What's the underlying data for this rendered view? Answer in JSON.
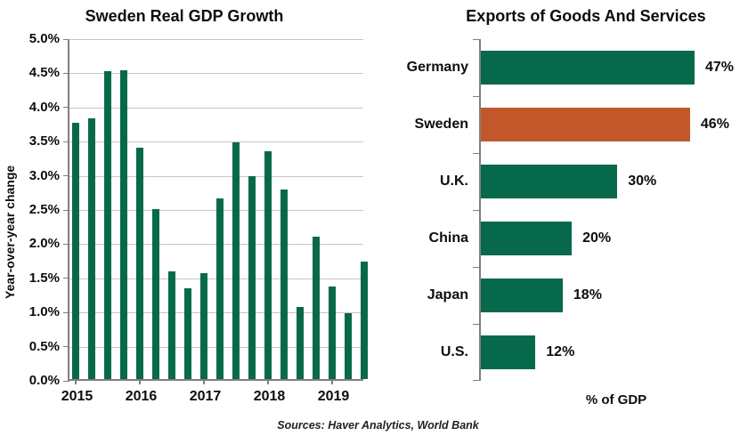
{
  "source": "Sources: Haver Analytics, World Bank",
  "colors": {
    "green": "#06694C",
    "orange": "#C2582A",
    "gridline": "#C6C6C6",
    "axis": "#7F7F7F",
    "text": "#0D0D0D"
  },
  "chart_data": [
    {
      "type": "bar",
      "title": "Sweden Real GDP Growth",
      "ylabel": "Year-over-year change",
      "ylim": [
        0,
        5
      ],
      "ytick_step": 0.5,
      "ytick_labels": [
        "5.0%",
        "4.5%",
        "4.0%",
        "3.5%",
        "3.0%",
        "2.5%",
        "2.0%",
        "1.5%",
        "1.0%",
        "0.5%",
        "0.0%"
      ],
      "x_year_labels": [
        "2015",
        "2016",
        "2017",
        "2018",
        "2019"
      ],
      "x": [
        "2015 Q1",
        "2015 Q2",
        "2015 Q3",
        "2015 Q4",
        "2016 Q1",
        "2016 Q2",
        "2016 Q3",
        "2016 Q4",
        "2017 Q1",
        "2017 Q2",
        "2017 Q3",
        "2017 Q4",
        "2018 Q1",
        "2018 Q2",
        "2018 Q3",
        "2018 Q4",
        "2019 Q1",
        "2019 Q2",
        "2019 Q3"
      ],
      "values": [
        3.75,
        3.81,
        4.51,
        4.52,
        3.38,
        2.49,
        1.58,
        1.33,
        1.55,
        2.64,
        3.46,
        2.97,
        3.33,
        2.77,
        1.05,
        2.09,
        1.36,
        0.96,
        1.72
      ],
      "grid": true,
      "legend": false,
      "bar_color": "#06694C"
    },
    {
      "type": "bar",
      "orientation": "horizontal",
      "title": "Exports of Goods And Services",
      "xlabel": "% of GDP",
      "categories": [
        "Germany",
        "Sweden",
        "U.K.",
        "China",
        "Japan",
        "U.S."
      ],
      "values": [
        47,
        46,
        30,
        20,
        18,
        12
      ],
      "value_labels": [
        "47%",
        "46%",
        "30%",
        "20%",
        "18%",
        "12%"
      ],
      "bar_colors": [
        "#06694C",
        "#C2582A",
        "#06694C",
        "#06694C",
        "#06694C",
        "#06694C"
      ],
      "xmax": 47,
      "grid": false,
      "legend": false
    }
  ]
}
